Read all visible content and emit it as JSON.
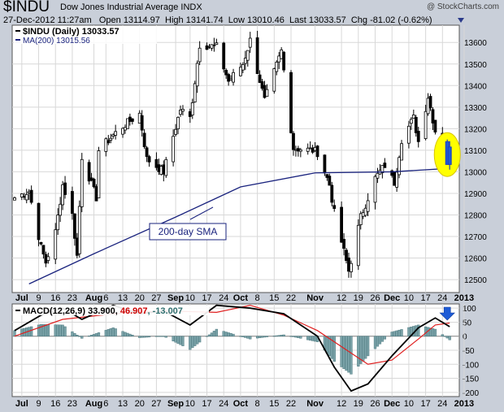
{
  "header": {
    "symbol": "$INDU",
    "name": "Dow Jones Industrial Average  INDX",
    "watermark": "@ StockCharts.com",
    "date": "27-Dec-2012 11:27am",
    "open_label": "Open",
    "open": "13114.97",
    "high_label": "High",
    "high": "13141.74",
    "low_label": "Low",
    "low": "13010.46",
    "last_label": "Last",
    "last": "13033.57",
    "chg_label": "Chg",
    "chg": "-81.02 (-0.62%)"
  },
  "chart_data": [
    {
      "type": "candlestick",
      "legend": [
        {
          "text": "$INDU (Daily) 13033.57",
          "color": "#000000"
        },
        {
          "text": "MA(200) 13015.56",
          "color": "#1a237e"
        }
      ],
      "y_ticks": [
        12500,
        12600,
        12700,
        12800,
        12900,
        13000,
        13100,
        13200,
        13300,
        13400,
        13500,
        13600
      ],
      "ylim": [
        12440,
        13680
      ],
      "annotation": "200-day SMA",
      "ohlc_close_path": [
        [
          "2012-06-29",
          12880
        ],
        [
          "2012-07-05",
          12910
        ],
        [
          "2012-07-10",
          12650
        ],
        [
          "2012-07-12",
          12580
        ],
        [
          "2012-07-16",
          12720
        ],
        [
          "2012-07-19",
          12940
        ],
        [
          "2012-07-23",
          12800
        ],
        [
          "2012-07-25",
          12610
        ],
        [
          "2012-07-27",
          13070
        ],
        [
          "2012-08-02",
          12880
        ],
        [
          "2012-08-03",
          13100
        ],
        [
          "2012-08-09",
          13170
        ],
        [
          "2012-08-13",
          13210
        ],
        [
          "2012-08-20",
          13270
        ],
        [
          "2012-08-23",
          13060
        ],
        [
          "2012-08-30",
          13000
        ],
        [
          "2012-09-06",
          13290
        ],
        [
          "2012-09-10",
          13250
        ],
        [
          "2012-09-14",
          13590
        ],
        [
          "2012-09-21",
          13580
        ],
        [
          "2012-09-26",
          13420
        ],
        [
          "2012-10-02",
          13500
        ],
        [
          "2012-10-05",
          13610
        ],
        [
          "2012-10-11",
          13330
        ],
        [
          "2012-10-18",
          13560
        ],
        [
          "2012-10-23",
          13110
        ],
        [
          "2012-10-31",
          13100
        ],
        [
          "2012-11-02",
          13090
        ],
        [
          "2012-11-07",
          12940
        ],
        [
          "2012-11-09",
          12810
        ],
        [
          "2012-11-15",
          12540
        ],
        [
          "2012-11-16",
          12590
        ],
        [
          "2012-11-20",
          12790
        ],
        [
          "2012-11-26",
          12970
        ],
        [
          "2012-11-30",
          13030
        ],
        [
          "2012-12-04",
          12950
        ],
        [
          "2012-12-07",
          13150
        ],
        [
          "2012-12-12",
          13250
        ],
        [
          "2012-12-14",
          13140
        ],
        [
          "2012-12-18",
          13350
        ],
        [
          "2012-12-21",
          13190
        ],
        [
          "2012-12-24",
          13140
        ],
        [
          "2012-12-27",
          13034
        ]
      ],
      "ma200_path": [
        [
          "2012-07-05",
          12480
        ],
        [
          "2012-08-01",
          12620
        ],
        [
          "2012-09-04",
          12790
        ],
        [
          "2012-10-01",
          12930
        ],
        [
          "2012-11-01",
          12995
        ],
        [
          "2012-12-03",
          13000
        ],
        [
          "2012-12-27",
          13016
        ]
      ]
    },
    {
      "type": "line",
      "indicator": "MACD(12,26,9)",
      "legend": [
        {
          "text": "MACD(12,26,9)",
          "color": "#000000"
        },
        {
          "text": "33.900",
          "color": "#000000"
        },
        {
          "text": "46.907",
          "color": "#cc0000"
        },
        {
          "text": ", -13.007",
          "color": "#2e6e6e"
        }
      ],
      "y_ticks": [
        100,
        50,
        0,
        -50,
        -100,
        -150,
        -200
      ],
      "ylim": [
        -215,
        115
      ],
      "macd_path": [
        [
          "2012-06-29",
          20
        ],
        [
          "2012-07-10",
          75
        ],
        [
          "2012-07-19",
          100
        ],
        [
          "2012-07-27",
          60
        ],
        [
          "2012-08-09",
          110
        ],
        [
          "2012-08-20",
          80
        ],
        [
          "2012-08-30",
          90
        ],
        [
          "2012-09-10",
          40
        ],
        [
          "2012-09-21",
          110
        ],
        [
          "2012-10-05",
          100
        ],
        [
          "2012-10-19",
          80
        ],
        [
          "2012-11-02",
          0
        ],
        [
          "2012-11-09",
          -110
        ],
        [
          "2012-11-16",
          -195
        ],
        [
          "2012-11-23",
          -170
        ],
        [
          "2012-12-03",
          -70
        ],
        [
          "2012-12-14",
          30
        ],
        [
          "2012-12-21",
          65
        ],
        [
          "2012-12-27",
          34
        ]
      ],
      "signal_path": [
        [
          "2012-06-29",
          0
        ],
        [
          "2012-07-19",
          60
        ],
        [
          "2012-08-09",
          80
        ],
        [
          "2012-08-30",
          90
        ],
        [
          "2012-09-21",
          85
        ],
        [
          "2012-10-05",
          110
        ],
        [
          "2012-10-19",
          75
        ],
        [
          "2012-11-02",
          20
        ],
        [
          "2012-11-16",
          -60
        ],
        [
          "2012-11-23",
          -100
        ],
        [
          "2012-12-03",
          -85
        ],
        [
          "2012-12-14",
          -10
        ],
        [
          "2012-12-21",
          40
        ],
        [
          "2012-12-27",
          47
        ]
      ]
    }
  ],
  "x_axis": {
    "labels": [
      {
        "text": "Jul",
        "date": "2012-07-02",
        "bold": true
      },
      {
        "text": "9",
        "date": "2012-07-09"
      },
      {
        "text": "16",
        "date": "2012-07-16"
      },
      {
        "text": "23",
        "date": "2012-07-23"
      },
      {
        "text": "Aug",
        "date": "2012-08-01",
        "bold": true
      },
      {
        "text": "6",
        "date": "2012-08-06"
      },
      {
        "text": "13",
        "date": "2012-08-13"
      },
      {
        "text": "20",
        "date": "2012-08-20"
      },
      {
        "text": "27",
        "date": "2012-08-27"
      },
      {
        "text": "Sep",
        "date": "2012-09-04",
        "bold": true
      },
      {
        "text": "10",
        "date": "2012-09-10"
      },
      {
        "text": "17",
        "date": "2012-09-17"
      },
      {
        "text": "24",
        "date": "2012-09-24"
      },
      {
        "text": "Oct",
        "date": "2012-10-01",
        "bold": true
      },
      {
        "text": "8",
        "date": "2012-10-08"
      },
      {
        "text": "15",
        "date": "2012-10-15"
      },
      {
        "text": "22",
        "date": "2012-10-22"
      },
      {
        "text": "Nov",
        "date": "2012-11-01",
        "bold": true
      },
      {
        "text": "12",
        "date": "2012-11-12"
      },
      {
        "text": "19",
        "date": "2012-11-19"
      },
      {
        "text": "26",
        "date": "2012-11-26"
      },
      {
        "text": "Dec",
        "date": "2012-12-03",
        "bold": true
      },
      {
        "text": "10",
        "date": "2012-12-10"
      },
      {
        "text": "17",
        "date": "2012-12-17"
      },
      {
        "text": "24",
        "date": "2012-12-24"
      },
      {
        "text": "2013",
        "date": "2013-01-02",
        "bold": true
      }
    ],
    "range": [
      "2012-06-28",
      "2012-12-31"
    ]
  },
  "colors": {
    "frame": "#c9cfd9",
    "candle": "#000000",
    "ma": "#1a237e",
    "signal": "#e02020",
    "histogram": "#7aa2a8",
    "highlight": "#ffff00",
    "arrow": "#1e5bd6"
  }
}
